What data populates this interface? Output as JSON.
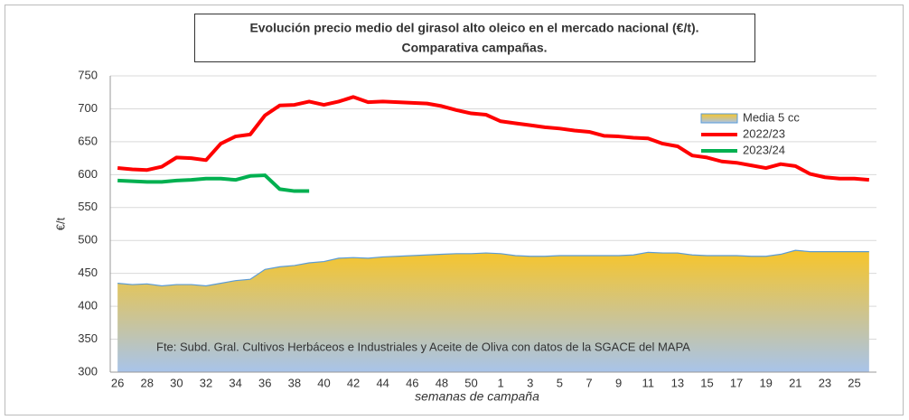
{
  "chart_data": {
    "type": "line",
    "title": [
      "Evolución precio medio del girasol alto oleico en el mercado nacional (€/t).",
      "Comparativa campañas."
    ],
    "y_label": "€/t",
    "x_label": "semanas de campaña",
    "annotation": "Fte: Subd. Gral. Cultivos Herbáceos e Industriales y Aceite de Oliva con datos de la SGACE del MAPA",
    "categories": [
      "26",
      null,
      "28",
      null,
      "30",
      null,
      "32",
      null,
      "34",
      null,
      "36",
      null,
      "38",
      null,
      "40",
      null,
      "42",
      null,
      "44",
      null,
      "46",
      null,
      "48",
      null,
      "50",
      null,
      "1",
      null,
      "3",
      null,
      "5",
      null,
      "7",
      null,
      "9",
      null,
      "11",
      null,
      "13",
      null,
      "15",
      null,
      "17",
      null,
      "19",
      null,
      "21",
      null,
      "23",
      null,
      "25",
      null
    ],
    "series": [
      {
        "name": "Media 5 cc",
        "style": "area",
        "color": "#5b9bd5",
        "fill_colors": [
          "#f7c52a",
          "#a8c4ea"
        ],
        "values": [
          435,
          433,
          434,
          431,
          433,
          433,
          431,
          435,
          439,
          441,
          456,
          460,
          462,
          466,
          468,
          473,
          474,
          473,
          475,
          476,
          477,
          478,
          479,
          480,
          480,
          481,
          480,
          477,
          476,
          476,
          477,
          477,
          477,
          477,
          477,
          478,
          482,
          481,
          481,
          478,
          477,
          477,
          477,
          476,
          476,
          479,
          485,
          483,
          483,
          483,
          483,
          483
        ]
      },
      {
        "name": "2022/23",
        "style": "line",
        "color": "#ff0000",
        "values": [
          610,
          608,
          607,
          612,
          626,
          625,
          622,
          647,
          658,
          661,
          690,
          705,
          706,
          711,
          706,
          711,
          718,
          710,
          711,
          710,
          709,
          708,
          704,
          698,
          693,
          691,
          681,
          678,
          675,
          672,
          670,
          667,
          665,
          659,
          658,
          656,
          655,
          647,
          643,
          629,
          626,
          620,
          618,
          614,
          610,
          616,
          613,
          601,
          596,
          594,
          594,
          592
        ]
      },
      {
        "name": "2023/24",
        "style": "line",
        "color": "#00b050",
        "values": [
          591,
          590,
          589,
          589,
          591,
          592,
          594,
          594,
          592,
          598,
          599,
          578,
          575,
          575,
          null,
          null,
          null,
          null,
          null,
          null,
          null,
          null,
          null,
          null,
          null,
          null,
          null,
          null,
          null,
          null,
          null,
          null,
          null,
          null,
          null,
          null,
          null,
          null,
          null,
          null,
          null,
          null,
          null,
          null,
          null,
          null,
          null,
          null,
          null,
          null,
          null,
          null
        ]
      }
    ],
    "ylim": [
      300,
      750
    ],
    "yticks": [
      300,
      350,
      400,
      450,
      500,
      550,
      600,
      650,
      700,
      750
    ],
    "grid": true,
    "legend": "top-right"
  }
}
